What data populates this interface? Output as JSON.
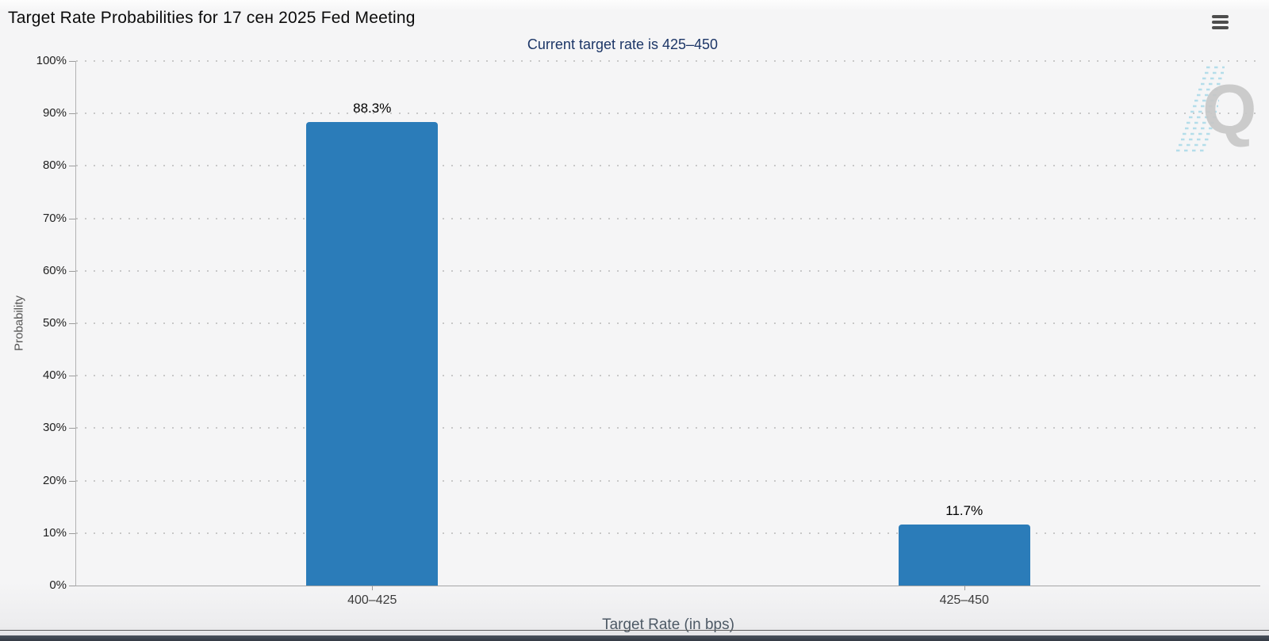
{
  "header": {
    "title": "Target Rate Probabilities for 17 сен 2025 Fed Meeting"
  },
  "chart_data": {
    "type": "bar",
    "title": "Target Rate Probabilities for 17 сен 2025 Fed Meeting",
    "subtitle": "Current target rate is 425–450",
    "categories": [
      "400–425",
      "425–450"
    ],
    "values": [
      88.3,
      11.7
    ],
    "value_labels": [
      "88.3%",
      "11.7%"
    ],
    "xlabel": "Target Rate (in bps)",
    "ylabel": "Probability",
    "ylim": [
      0,
      100
    ],
    "ytick_step": 10,
    "ytick_labels": [
      "0%",
      "10%",
      "20%",
      "30%",
      "40%",
      "50%",
      "60%",
      "70%",
      "80%",
      "90%",
      "100%"
    ],
    "grid": "dotted-horizontal",
    "legend": "none",
    "bar_color": "#2b7cb9",
    "subtitle_color": "#1c3667"
  },
  "watermark": {
    "letter": "Q"
  },
  "colors": {
    "background": "#f5f5f6",
    "bar": "#2b7cb9",
    "subtitle": "#1c3667",
    "bottom_bar": "#3f4550"
  }
}
